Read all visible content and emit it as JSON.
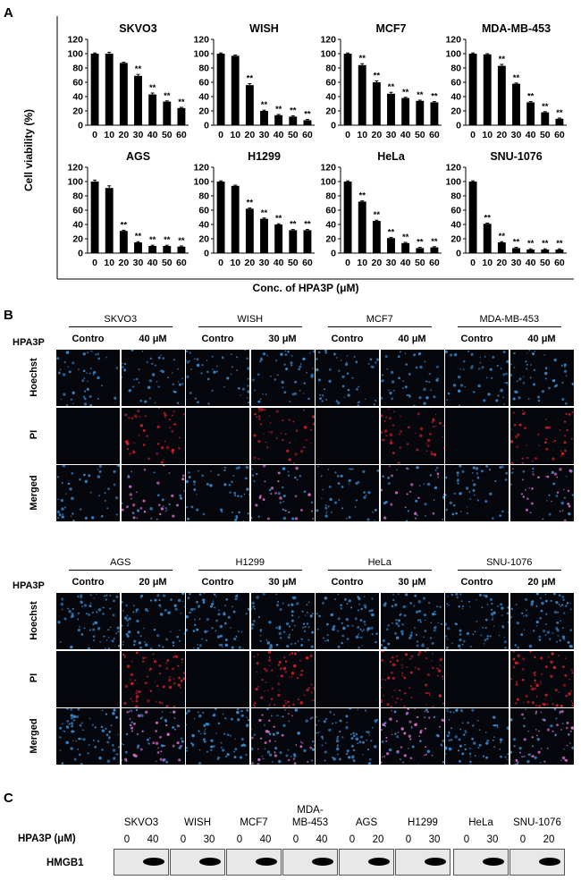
{
  "panels": {
    "a": "A",
    "b": "B",
    "c": "C"
  },
  "panel_a": {
    "ylabel": "Cell viability (%)",
    "xlabel": "Conc. of HPA3P (μM)",
    "significance_mark": "**",
    "yticks": [
      "0",
      "20",
      "40",
      "60",
      "80",
      "100",
      "120"
    ],
    "xticks": [
      "0",
      "10",
      "20",
      "30",
      "40",
      "50",
      "60"
    ]
  },
  "chart_data": [
    {
      "type": "bar",
      "title": "SKVO3",
      "categories": [
        "0",
        "10",
        "20",
        "30",
        "40",
        "50",
        "60"
      ],
      "values": [
        100,
        100,
        87,
        69,
        43,
        33,
        24
      ],
      "errors": [
        1,
        2,
        1,
        2,
        2,
        1,
        1
      ],
      "significant": [
        false,
        false,
        false,
        true,
        true,
        true,
        true
      ],
      "ylim": [
        0,
        120
      ]
    },
    {
      "type": "bar",
      "title": "WISH",
      "categories": [
        "0",
        "10",
        "20",
        "30",
        "40",
        "50",
        "60"
      ],
      "values": [
        100,
        97,
        56,
        20,
        14,
        12,
        7
      ],
      "errors": [
        1,
        1,
        2,
        1,
        1,
        1,
        1
      ],
      "significant": [
        false,
        false,
        true,
        true,
        true,
        true,
        true
      ],
      "ylim": [
        0,
        120
      ]
    },
    {
      "type": "bar",
      "title": "MCF7",
      "categories": [
        "0",
        "10",
        "20",
        "30",
        "40",
        "50",
        "60"
      ],
      "values": [
        100,
        84,
        60,
        44,
        38,
        34,
        32
      ],
      "errors": [
        1,
        2,
        2,
        2,
        1,
        1,
        1
      ],
      "significant": [
        false,
        true,
        true,
        true,
        true,
        true,
        true
      ],
      "ylim": [
        0,
        120
      ]
    },
    {
      "type": "bar",
      "title": "MDA-MB-453",
      "categories": [
        "0",
        "10",
        "20",
        "30",
        "40",
        "50",
        "60"
      ],
      "values": [
        100,
        99,
        83,
        58,
        32,
        18,
        9
      ],
      "errors": [
        1,
        1,
        2,
        1,
        1,
        1,
        1
      ],
      "significant": [
        false,
        false,
        true,
        true,
        true,
        true,
        true
      ],
      "ylim": [
        0,
        120
      ]
    },
    {
      "type": "bar",
      "title": "AGS",
      "categories": [
        "0",
        "10",
        "20",
        "30",
        "40",
        "50",
        "60"
      ],
      "values": [
        100,
        91,
        31,
        15,
        10,
        10,
        9
      ],
      "errors": [
        2,
        3,
        1,
        1,
        1,
        1,
        1
      ],
      "significant": [
        false,
        false,
        true,
        true,
        true,
        true,
        true
      ],
      "ylim": [
        0,
        120
      ]
    },
    {
      "type": "bar",
      "title": "H1299",
      "categories": [
        "0",
        "10",
        "20",
        "30",
        "40",
        "50",
        "60"
      ],
      "values": [
        100,
        94,
        62,
        48,
        40,
        32,
        32
      ],
      "errors": [
        1,
        1,
        1,
        1,
        1,
        1,
        1
      ],
      "significant": [
        false,
        false,
        true,
        true,
        true,
        true,
        true
      ],
      "ylim": [
        0,
        120
      ]
    },
    {
      "type": "bar",
      "title": "HeLa",
      "categories": [
        "0",
        "10",
        "20",
        "30",
        "40",
        "50",
        "60"
      ],
      "values": [
        100,
        72,
        45,
        21,
        14,
        7,
        8
      ],
      "errors": [
        1,
        1,
        1,
        1,
        1,
        1,
        1
      ],
      "significant": [
        false,
        true,
        true,
        true,
        true,
        true,
        true
      ],
      "ylim": [
        0,
        120
      ]
    },
    {
      "type": "bar",
      "title": "SNU-1076",
      "categories": [
        "0",
        "10",
        "20",
        "30",
        "40",
        "50",
        "60"
      ],
      "values": [
        100,
        41,
        15,
        7,
        5,
        5,
        5
      ],
      "errors": [
        1,
        1,
        1,
        1,
        1,
        1,
        1
      ],
      "significant": [
        false,
        true,
        true,
        true,
        true,
        true,
        true
      ],
      "ylim": [
        0,
        120
      ]
    }
  ],
  "panel_b": {
    "treatment_label": "HPA3P",
    "rows": [
      "Hoechst",
      "PI",
      "Merged"
    ],
    "groups": [
      [
        {
          "line": "SKVO3",
          "control": "Contro",
          "dose": "40 μM"
        },
        {
          "line": "WISH",
          "control": "Contro",
          "dose": "30 μM"
        },
        {
          "line": "MCF7",
          "control": "Contro",
          "dose": "40 μM"
        },
        {
          "line": "MDA-MB-453",
          "control": "Contro",
          "dose": "40 μM"
        }
      ],
      [
        {
          "line": "AGS",
          "control": "Contro",
          "dose": "20 μM"
        },
        {
          "line": "H1299",
          "control": "Contro",
          "dose": "30 μM"
        },
        {
          "line": "HeLa",
          "control": "Contro",
          "dose": "30 μM"
        },
        {
          "line": "SNU-1076",
          "control": "Contro",
          "dose": "20 μM"
        }
      ]
    ],
    "colors": {
      "hoechst": "#3a8fd8",
      "pi": "#d0202a",
      "merged_pi": "#e070d0",
      "background": "#05070d"
    }
  },
  "panel_c": {
    "treatment_label": "HPA3P (μM)",
    "protein": "HMGB1",
    "lanes": [
      {
        "line": "SKVO3",
        "doses": [
          "0",
          "40"
        ]
      },
      {
        "line": "WISH",
        "doses": [
          "0",
          "30"
        ]
      },
      {
        "line": "MCF7",
        "doses": [
          "0",
          "40"
        ]
      },
      {
        "line": "MDA-MB-453",
        "doses": [
          "0",
          "40"
        ]
      },
      {
        "line": "AGS",
        "doses": [
          "0",
          "20"
        ]
      },
      {
        "line": "H1299",
        "doses": [
          "0",
          "30"
        ]
      },
      {
        "line": "HeLa",
        "doses": [
          "0",
          "30"
        ]
      },
      {
        "line": "SNU-1076",
        "doses": [
          "0",
          "20"
        ]
      }
    ],
    "mda_line_wrapped": [
      "MDA-",
      "MB-453"
    ]
  }
}
